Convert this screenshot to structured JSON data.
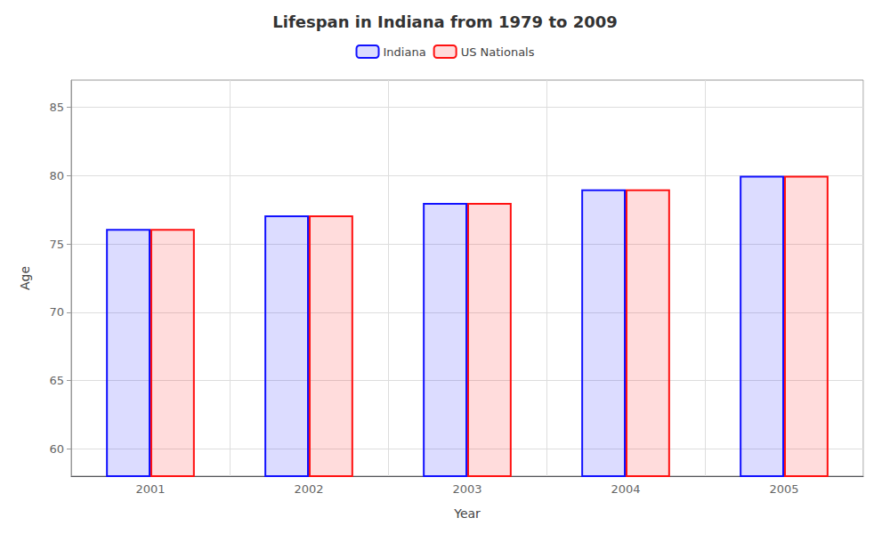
{
  "chart_data": {
    "type": "bar",
    "title": "Lifespan in Indiana from 1979 to 2009",
    "xlabel": "Year",
    "ylabel": "Age",
    "categories": [
      "2001",
      "2002",
      "2003",
      "2004",
      "2005"
    ],
    "series": [
      {
        "name": "Indiana",
        "color": "#1111ff",
        "values": [
          76.1,
          77.1,
          78.0,
          79.0,
          80.0
        ]
      },
      {
        "name": "US Nationals",
        "color": "#ff1111",
        "values": [
          76.1,
          77.1,
          78.0,
          79.0,
          80.0
        ]
      }
    ],
    "ylim": [
      58,
      87
    ],
    "yticks": [
      60,
      65,
      70,
      75,
      80,
      85
    ],
    "grid": true,
    "legend": "top"
  }
}
